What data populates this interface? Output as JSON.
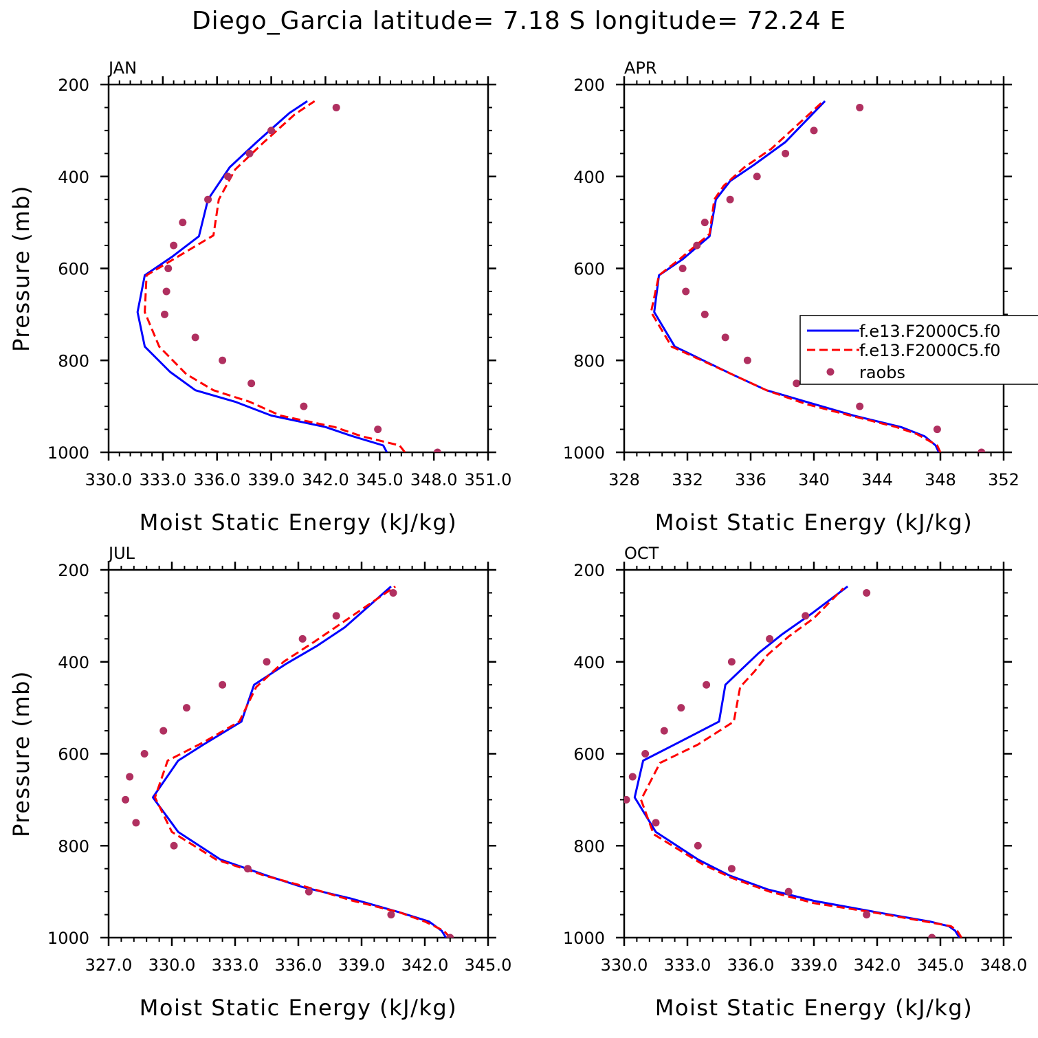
{
  "title": "Diego_Garcia  latitude= 7.18 S longitude= 72.24 E",
  "colors": {
    "model1": "#0000ff",
    "model2": "#ff0000",
    "obs": "#b03060",
    "axis": "#000000"
  },
  "legend": {
    "entries": [
      "f.e13.F2000C5.f0",
      "f.e13.F2000C5.f0",
      "raobs"
    ],
    "location": "right of APR panel"
  },
  "chart_data": [
    {
      "type": "line",
      "panel": "JAN",
      "title": "JAN",
      "xlabel": "Moist Static Energy (kJ/kg)",
      "ylabel": "Pressure (mb)",
      "xlim": [
        330.0,
        351.0
      ],
      "ylim": [
        1000,
        200
      ],
      "xticks": [
        330,
        333,
        336,
        339,
        342,
        345,
        348,
        351
      ],
      "xticklabels": [
        "330.0",
        "333.0",
        "336.0",
        "339.0",
        "342.0",
        "345.0",
        "348.0",
        "351.0"
      ],
      "yticks": [
        200,
        400,
        600,
        800,
        1000
      ],
      "yticklabels": [
        "200",
        "400",
        "600",
        "800",
        "1000"
      ],
      "series": [
        {
          "name": "f.e13.F2000C5.f0",
          "style": "solid",
          "color": "#0000ff",
          "points": [
            [
              345.4,
              1000
            ],
            [
              345.2,
              985
            ],
            [
              343.5,
              965
            ],
            [
              342.0,
              945
            ],
            [
              339.0,
              920
            ],
            [
              337.0,
              890
            ],
            [
              334.8,
              865
            ],
            [
              333.4,
              825
            ],
            [
              332.0,
              770
            ],
            [
              331.6,
              695
            ],
            [
              332.0,
              615
            ],
            [
              333.5,
              575
            ],
            [
              335.0,
              530
            ],
            [
              335.5,
              450
            ],
            [
              336.7,
              380
            ],
            [
              338.2,
              325
            ],
            [
              340.0,
              262
            ],
            [
              341.0,
              236
            ]
          ]
        },
        {
          "name": "f.e13.F2000C5.f0",
          "style": "dashed",
          "color": "#ff0000",
          "points": [
            [
              346.4,
              1000
            ],
            [
              346.1,
              985
            ],
            [
              344.0,
              965
            ],
            [
              342.5,
              945
            ],
            [
              339.5,
              920
            ],
            [
              337.8,
              890
            ],
            [
              335.8,
              865
            ],
            [
              334.3,
              830
            ],
            [
              332.8,
              770
            ],
            [
              332.0,
              695
            ],
            [
              332.1,
              615
            ],
            [
              333.8,
              575
            ],
            [
              335.8,
              528
            ],
            [
              336.1,
              450
            ],
            [
              337.0,
              385
            ],
            [
              338.6,
              325
            ],
            [
              340.3,
              265
            ],
            [
              341.4,
              236
            ]
          ]
        },
        {
          "name": "raobs",
          "style": "markers",
          "color": "#b03060",
          "points": [
            [
              348.2,
              1000
            ],
            [
              344.9,
              950
            ],
            [
              340.8,
              900
            ],
            [
              337.9,
              850
            ],
            [
              336.3,
              800
            ],
            [
              334.8,
              750
            ],
            [
              333.1,
              700
            ],
            [
              333.2,
              650
            ],
            [
              333.3,
              600
            ],
            [
              333.6,
              550
            ],
            [
              334.1,
              500
            ],
            [
              335.5,
              450
            ],
            [
              336.6,
              400
            ],
            [
              337.8,
              350
            ],
            [
              339.0,
              300
            ],
            [
              342.6,
              250
            ]
          ]
        }
      ]
    },
    {
      "type": "line",
      "panel": "APR",
      "title": "APR",
      "xlabel": "Moist Static Energy (kJ/kg)",
      "ylabel": "",
      "xlim": [
        328,
        352
      ],
      "ylim": [
        1000,
        200
      ],
      "xticks": [
        328,
        332,
        336,
        340,
        344,
        348,
        352
      ],
      "xticklabels": [
        "328",
        "332",
        "336",
        "340",
        "344",
        "348",
        "352"
      ],
      "yticks": [
        200,
        400,
        600,
        800,
        1000
      ],
      "yticklabels": [
        "200",
        "400",
        "600",
        "800",
        "1000"
      ],
      "series": [
        {
          "name": "f.e13.F2000C5.f0",
          "style": "solid",
          "color": "#0000ff",
          "points": [
            [
              347.9,
              1000
            ],
            [
              347.7,
              985
            ],
            [
              347.0,
              965
            ],
            [
              345.5,
              945
            ],
            [
              342.5,
              920
            ],
            [
              339.5,
              890
            ],
            [
              337.0,
              865
            ],
            [
              334.8,
              830
            ],
            [
              331.2,
              770
            ],
            [
              329.9,
              695
            ],
            [
              330.2,
              615
            ],
            [
              331.7,
              580
            ],
            [
              333.4,
              530
            ],
            [
              333.8,
              450
            ],
            [
              334.7,
              410
            ],
            [
              336.2,
              375
            ],
            [
              338.2,
              325
            ],
            [
              340.7,
              236
            ]
          ]
        },
        {
          "name": "f.e13.F2000C5.f0",
          "style": "dashed",
          "color": "#ff0000",
          "points": [
            [
              348.0,
              1000
            ],
            [
              347.8,
              985
            ],
            [
              346.5,
              960
            ],
            [
              345.2,
              945
            ],
            [
              342.3,
              920
            ],
            [
              339.5,
              895
            ],
            [
              337.0,
              865
            ],
            [
              334.8,
              830
            ],
            [
              331.0,
              770
            ],
            [
              329.7,
              695
            ],
            [
              330.2,
              615
            ],
            [
              331.5,
              580
            ],
            [
              333.4,
              525
            ],
            [
              333.7,
              450
            ],
            [
              334.3,
              420
            ],
            [
              335.6,
              380
            ],
            [
              337.3,
              340
            ],
            [
              340.6,
              236
            ]
          ]
        },
        {
          "name": "raobs",
          "style": "markers",
          "color": "#b03060",
          "points": [
            [
              350.6,
              1000
            ],
            [
              347.8,
              950
            ],
            [
              342.9,
              900
            ],
            [
              338.9,
              850
            ],
            [
              335.8,
              800
            ],
            [
              334.4,
              750
            ],
            [
              333.1,
              700
            ],
            [
              331.9,
              650
            ],
            [
              331.7,
              600
            ],
            [
              332.6,
              550
            ],
            [
              333.1,
              500
            ],
            [
              334.7,
              450
            ],
            [
              336.4,
              400
            ],
            [
              338.2,
              350
            ],
            [
              340.0,
              300
            ],
            [
              342.9,
              250
            ]
          ]
        }
      ]
    },
    {
      "type": "line",
      "panel": "JUL",
      "title": "JUL",
      "xlabel": "Moist Static Energy (kJ/kg)",
      "ylabel": "Pressure (mb)",
      "xlim": [
        327.0,
        345.0
      ],
      "ylim": [
        1000,
        200
      ],
      "xticks": [
        327,
        330,
        333,
        336,
        339,
        342,
        345
      ],
      "xticklabels": [
        "327.0",
        "330.0",
        "333.0",
        "336.0",
        "339.0",
        "342.0",
        "345.0"
      ],
      "yticks": [
        200,
        400,
        600,
        800,
        1000
      ],
      "yticklabels": [
        "200",
        "400",
        "600",
        "800",
        "1000"
      ],
      "series": [
        {
          "name": "f.e13.F2000C5.f0",
          "style": "solid",
          "color": "#0000ff",
          "points": [
            [
              343.0,
              1000
            ],
            [
              342.8,
              985
            ],
            [
              342.2,
              965
            ],
            [
              340.8,
              945
            ],
            [
              338.5,
              915
            ],
            [
              336.2,
              890
            ],
            [
              334.5,
              865
            ],
            [
              332.3,
              830
            ],
            [
              330.3,
              770
            ],
            [
              329.1,
              695
            ],
            [
              330.3,
              615
            ],
            [
              331.5,
              580
            ],
            [
              333.3,
              530
            ],
            [
              333.9,
              450
            ],
            [
              335.4,
              405
            ],
            [
              336.9,
              365
            ],
            [
              338.2,
              325
            ],
            [
              340.4,
              236
            ]
          ]
        },
        {
          "name": "f.e13.F2000C5.f0",
          "style": "dashed",
          "color": "#ff0000",
          "points": [
            [
              343.2,
              1000
            ],
            [
              342.9,
              985
            ],
            [
              342.0,
              965
            ],
            [
              340.8,
              945
            ],
            [
              338.6,
              920
            ],
            [
              336.4,
              890
            ],
            [
              334.4,
              865
            ],
            [
              332.1,
              830
            ],
            [
              330.0,
              770
            ],
            [
              329.2,
              695
            ],
            [
              329.8,
              615
            ],
            [
              331.5,
              575
            ],
            [
              333.2,
              530
            ],
            [
              334.0,
              455
            ],
            [
              335.3,
              400
            ],
            [
              336.8,
              355
            ],
            [
              338.4,
              305
            ],
            [
              340.6,
              236
            ]
          ]
        },
        {
          "name": "raobs",
          "style": "markers",
          "color": "#b03060",
          "points": [
            [
              343.2,
              1000
            ],
            [
              340.4,
              950
            ],
            [
              336.5,
              900
            ],
            [
              333.6,
              850
            ],
            [
              330.1,
              800
            ],
            [
              328.3,
              750
            ],
            [
              327.8,
              700
            ],
            [
              328.0,
              650
            ],
            [
              328.7,
              600
            ],
            [
              329.6,
              550
            ],
            [
              330.7,
              500
            ],
            [
              332.4,
              450
            ],
            [
              334.5,
              400
            ],
            [
              336.2,
              350
            ],
            [
              337.8,
              300
            ],
            [
              340.5,
              250
            ]
          ]
        }
      ]
    },
    {
      "type": "line",
      "panel": "OCT",
      "title": "OCT",
      "xlabel": "Moist Static Energy (kJ/kg)",
      "ylabel": "",
      "xlim": [
        330.0,
        348.0
      ],
      "ylim": [
        1000,
        200
      ],
      "xticks": [
        330,
        333,
        336,
        339,
        342,
        345,
        348
      ],
      "xticklabels": [
        "330.0",
        "333.0",
        "336.0",
        "339.0",
        "342.0",
        "345.0",
        "348.0"
      ],
      "yticks": [
        200,
        400,
        600,
        800,
        1000
      ],
      "yticklabels": [
        "200",
        "400",
        "600",
        "800",
        "1000"
      ],
      "series": [
        {
          "name": "f.e13.F2000C5.f0",
          "style": "solid",
          "color": "#0000ff",
          "points": [
            [
              345.9,
              1000
            ],
            [
              345.7,
              985
            ],
            [
              345.4,
              975
            ],
            [
              344.5,
              965
            ],
            [
              342.0,
              945
            ],
            [
              339.0,
              920
            ],
            [
              336.8,
              895
            ],
            [
              335.0,
              865
            ],
            [
              333.5,
              830
            ],
            [
              331.5,
              770
            ],
            [
              330.5,
              695
            ],
            [
              330.9,
              615
            ],
            [
              332.6,
              575
            ],
            [
              334.5,
              530
            ],
            [
              334.8,
              450
            ],
            [
              335.6,
              415
            ],
            [
              336.4,
              380
            ],
            [
              337.5,
              340
            ],
            [
              338.9,
              295
            ],
            [
              340.6,
              236
            ]
          ]
        },
        {
          "name": "f.e13.F2000C5.f0",
          "style": "dashed",
          "color": "#ff0000",
          "points": [
            [
              346.0,
              1000
            ],
            [
              345.8,
              985
            ],
            [
              345.5,
              975
            ],
            [
              344.3,
              965
            ],
            [
              341.8,
              945
            ],
            [
              339.0,
              925
            ],
            [
              336.9,
              900
            ],
            [
              335.1,
              870
            ],
            [
              333.7,
              840
            ],
            [
              331.4,
              775
            ],
            [
              330.8,
              700
            ],
            [
              331.7,
              620
            ],
            [
              333.5,
              580
            ],
            [
              335.2,
              530
            ],
            [
              335.5,
              455
            ],
            [
              336.2,
              420
            ],
            [
              336.8,
              385
            ],
            [
              337.8,
              345
            ],
            [
              339.0,
              305
            ],
            [
              340.4,
              240
            ]
          ]
        },
        {
          "name": "raobs",
          "style": "markers",
          "color": "#b03060",
          "points": [
            [
              344.6,
              1000
            ],
            [
              341.5,
              950
            ],
            [
              337.8,
              900
            ],
            [
              335.1,
              850
            ],
            [
              333.5,
              800
            ],
            [
              331.5,
              750
            ],
            [
              330.1,
              700
            ],
            [
              330.4,
              650
            ],
            [
              331.0,
              600
            ],
            [
              331.9,
              550
            ],
            [
              332.7,
              500
            ],
            [
              333.9,
              450
            ],
            [
              335.1,
              400
            ],
            [
              336.9,
              350
            ],
            [
              338.6,
              300
            ],
            [
              341.5,
              250
            ]
          ]
        }
      ]
    }
  ]
}
